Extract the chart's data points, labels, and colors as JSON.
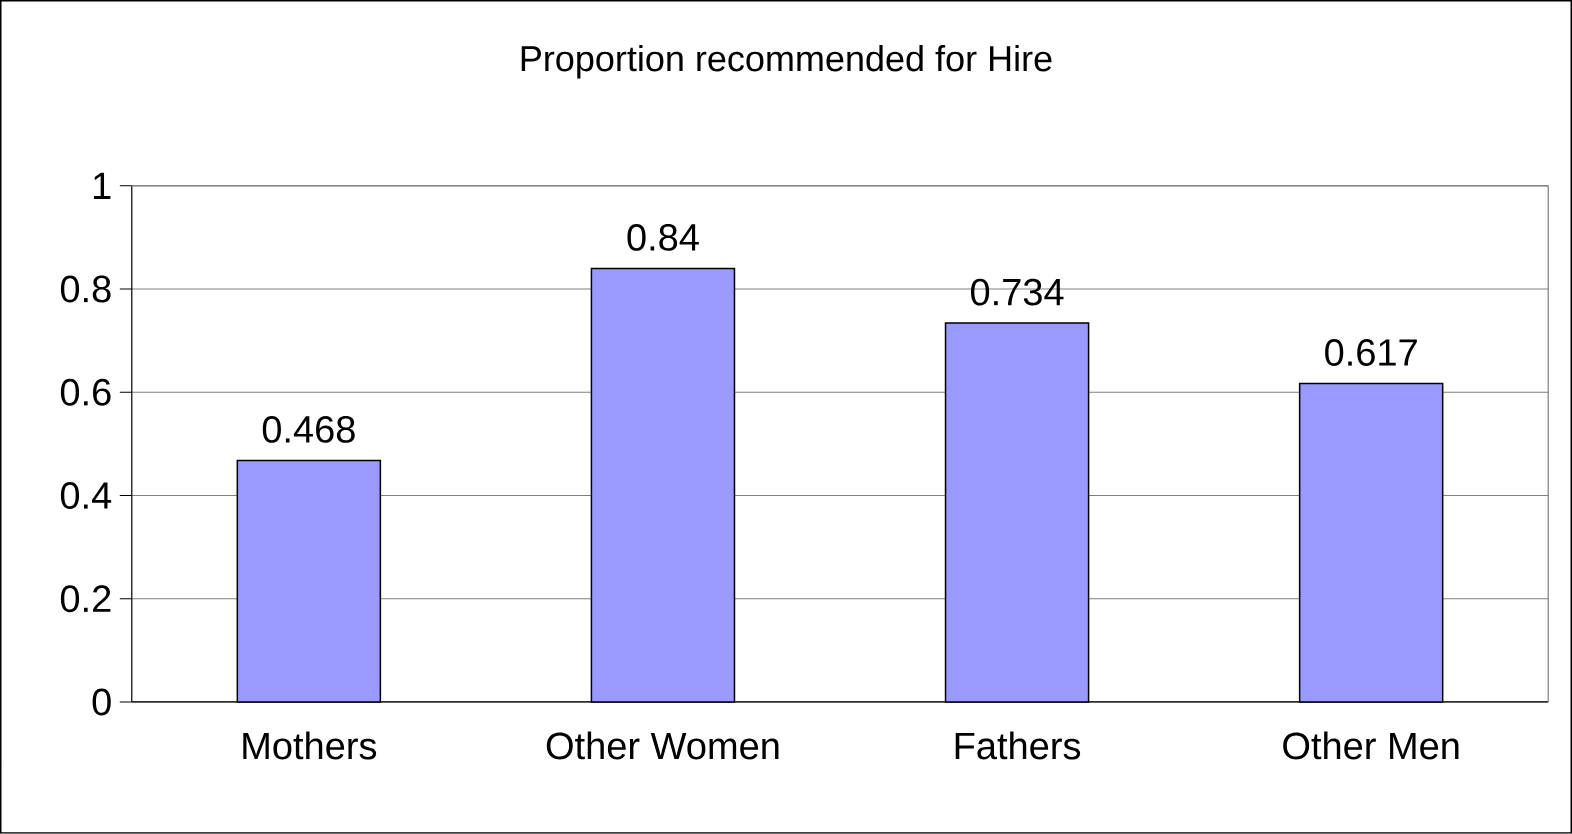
{
  "chart_data": {
    "type": "bar",
    "title": "Proportion recommended for Hire",
    "categories": [
      "Mothers",
      "Other Women",
      "Fathers",
      "Other Men"
    ],
    "values": [
      0.468,
      0.84,
      0.734,
      0.617
    ],
    "color": "#9999ff",
    "ylim": [
      0,
      1
    ],
    "yticks": [
      0,
      0.2,
      0.4,
      0.6,
      0.8,
      1
    ],
    "grid": "y",
    "data_labels": true
  }
}
